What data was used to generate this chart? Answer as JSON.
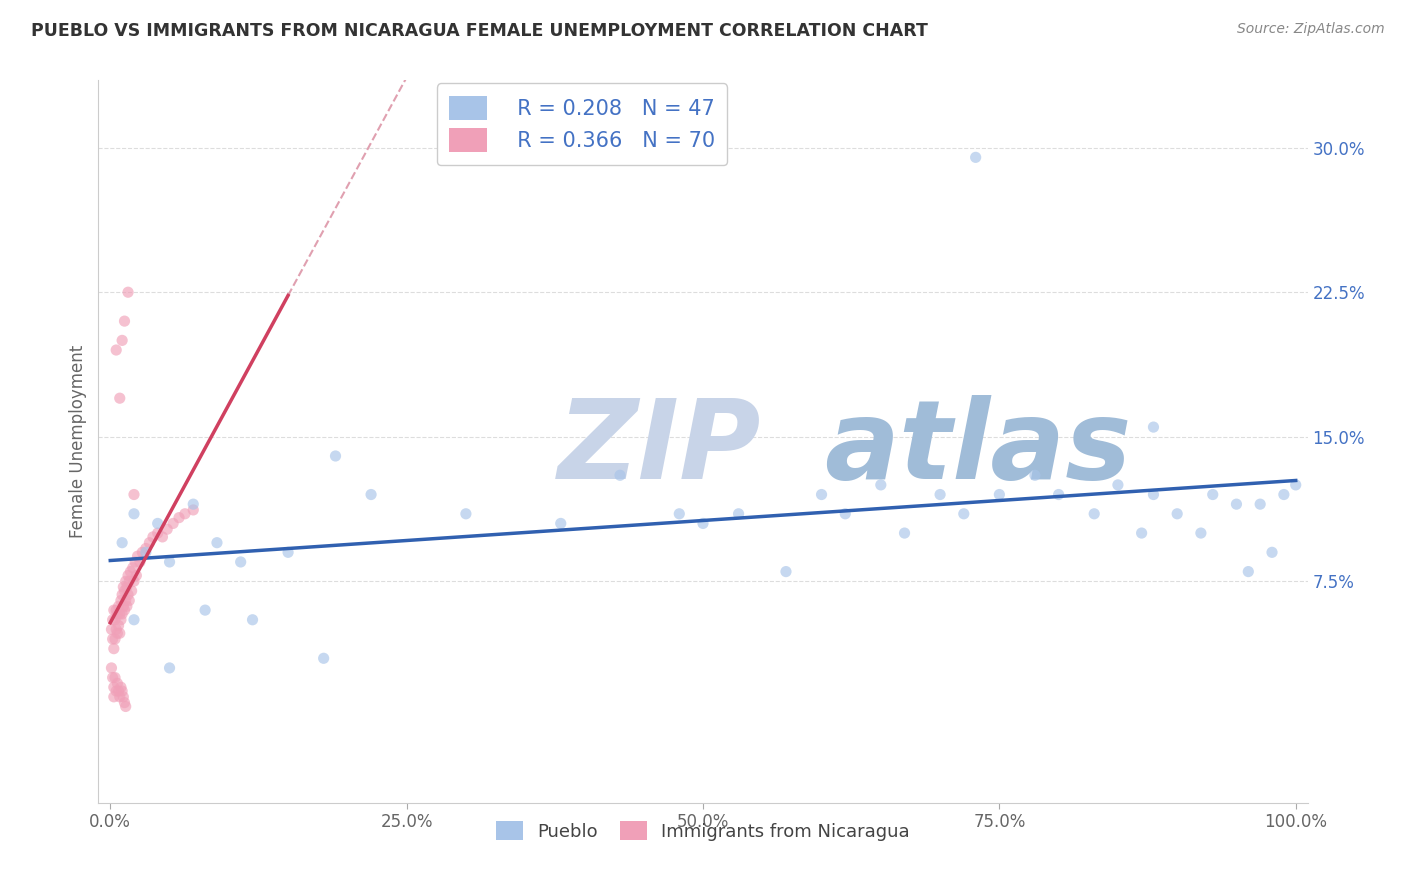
{
  "title": "PUEBLO VS IMMIGRANTS FROM NICARAGUA FEMALE UNEMPLOYMENT CORRELATION CHART",
  "source": "Source: ZipAtlas.com",
  "ylabel": "Female Unemployment",
  "legend_label1": "Pueblo",
  "legend_label2": "Immigrants from Nicaragua",
  "r1": 0.208,
  "n1": 47,
  "r2": 0.366,
  "n2": 70,
  "color1": "#a8c4e8",
  "color2": "#f0a0b8",
  "trendline1_color": "#3060b0",
  "trendline2_color": "#d04060",
  "diagonal_color": "#e0a0b0",
  "watermark_zip": "ZIP",
  "watermark_atlas": "atlas",
  "watermark_zip_color": "#c8d4e8",
  "watermark_atlas_color": "#a0bcd8",
  "xlim": [
    -0.01,
    1.01
  ],
  "ylim": [
    -0.04,
    0.335
  ],
  "xticks": [
    0.0,
    0.25,
    0.5,
    0.75,
    1.0
  ],
  "yticks": [
    0.075,
    0.15,
    0.225,
    0.3
  ],
  "xticklabels": [
    "0.0%",
    "25.0%",
    "50.0%",
    "75.0%",
    "100.0%"
  ],
  "yticklabels": [
    "7.5%",
    "15.0%",
    "22.5%",
    "30.0%"
  ],
  "pueblo_x": [
    0.01,
    0.02,
    0.03,
    0.04,
    0.05,
    0.07,
    0.09,
    0.11,
    0.15,
    0.19,
    0.22,
    0.3,
    0.38,
    0.43,
    0.48,
    0.5,
    0.53,
    0.57,
    0.6,
    0.62,
    0.65,
    0.67,
    0.7,
    0.72,
    0.75,
    0.78,
    0.8,
    0.83,
    0.85,
    0.87,
    0.88,
    0.9,
    0.92,
    0.93,
    0.95,
    0.96,
    0.97,
    0.98,
    0.99,
    1.0,
    0.02,
    0.05,
    0.08,
    0.12,
    0.18,
    0.73,
    0.88
  ],
  "pueblo_y": [
    0.095,
    0.11,
    0.09,
    0.105,
    0.085,
    0.115,
    0.095,
    0.085,
    0.09,
    0.14,
    0.12,
    0.11,
    0.105,
    0.13,
    0.11,
    0.105,
    0.11,
    0.08,
    0.12,
    0.11,
    0.125,
    0.1,
    0.12,
    0.11,
    0.12,
    0.13,
    0.12,
    0.11,
    0.125,
    0.1,
    0.12,
    0.11,
    0.1,
    0.12,
    0.115,
    0.08,
    0.115,
    0.09,
    0.12,
    0.125,
    0.055,
    0.03,
    0.06,
    0.055,
    0.035,
    0.295,
    0.155
  ],
  "nicaragua_x": [
    0.001,
    0.002,
    0.002,
    0.003,
    0.003,
    0.004,
    0.004,
    0.005,
    0.005,
    0.006,
    0.006,
    0.007,
    0.007,
    0.008,
    0.008,
    0.009,
    0.009,
    0.01,
    0.01,
    0.011,
    0.011,
    0.012,
    0.012,
    0.013,
    0.013,
    0.014,
    0.014,
    0.015,
    0.015,
    0.016,
    0.016,
    0.017,
    0.018,
    0.019,
    0.02,
    0.021,
    0.022,
    0.023,
    0.025,
    0.027,
    0.03,
    0.033,
    0.036,
    0.04,
    0.044,
    0.048,
    0.053,
    0.058,
    0.063,
    0.07,
    0.001,
    0.002,
    0.003,
    0.003,
    0.004,
    0.005,
    0.006,
    0.007,
    0.008,
    0.009,
    0.01,
    0.011,
    0.012,
    0.013,
    0.005,
    0.008,
    0.01,
    0.012,
    0.015,
    0.02
  ],
  "nicaragua_y": [
    0.05,
    0.055,
    0.045,
    0.06,
    0.04,
    0.055,
    0.045,
    0.06,
    0.05,
    0.058,
    0.048,
    0.062,
    0.052,
    0.058,
    0.048,
    0.065,
    0.055,
    0.068,
    0.058,
    0.072,
    0.062,
    0.07,
    0.06,
    0.075,
    0.065,
    0.072,
    0.062,
    0.078,
    0.068,
    0.075,
    0.065,
    0.08,
    0.07,
    0.082,
    0.075,
    0.085,
    0.078,
    0.088,
    0.085,
    0.09,
    0.092,
    0.095,
    0.098,
    0.1,
    0.098,
    0.102,
    0.105,
    0.108,
    0.11,
    0.112,
    0.03,
    0.025,
    0.02,
    0.015,
    0.025,
    0.018,
    0.022,
    0.018,
    0.015,
    0.02,
    0.018,
    0.015,
    0.012,
    0.01,
    0.195,
    0.17,
    0.2,
    0.21,
    0.225,
    0.12
  ]
}
